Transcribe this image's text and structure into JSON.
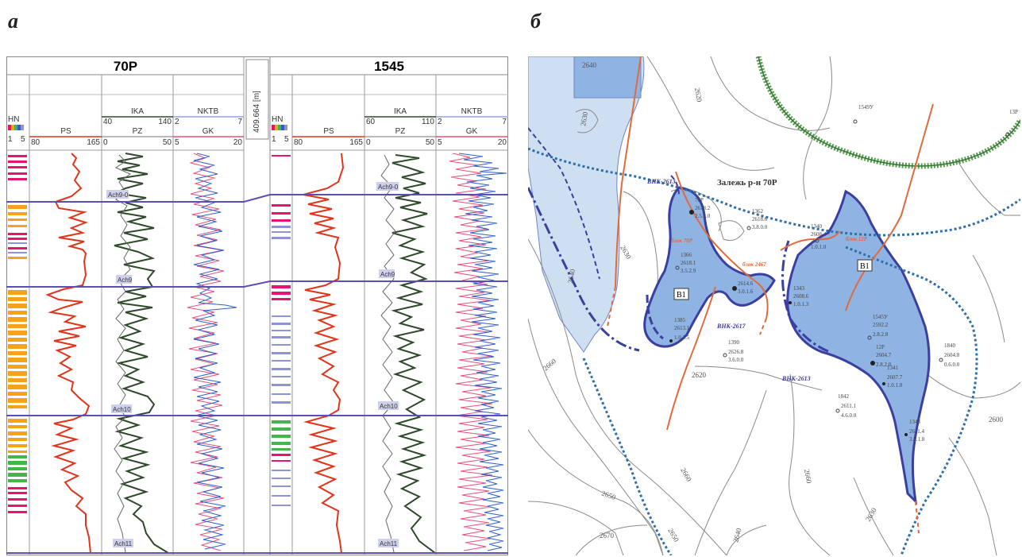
{
  "panel_a_label": "а",
  "panel_b_label": "б",
  "logs": {
    "distance_label": "409.664 [m]",
    "wells": [
      {
        "name": "70P",
        "hn_label": "HN",
        "hn_scale_min": "1",
        "hn_scale_max": "5",
        "ps_label": "PS",
        "ps_min": "80",
        "ps_max": "165",
        "ika_label": "IKA",
        "ika_min": "40",
        "ika_max": "140",
        "pz_label": "PZ",
        "pz_min": "0",
        "pz_max": "50",
        "nktb_label": "NKTB",
        "nktb_min": "2",
        "nktb_max": "7",
        "gk_label": "GK",
        "gk_min": "5",
        "gk_max": "20"
      },
      {
        "name": "1545",
        "hn_label": "HN",
        "hn_scale_min": "1",
        "hn_scale_max": "5",
        "ps_label": "PS",
        "ps_min": "80",
        "ps_max": "165",
        "ika_label": "IKA",
        "ika_min": "60",
        "ika_max": "110",
        "pz_label": "PZ",
        "pz_min": "0",
        "pz_max": "50",
        "nktb_label": "NKTB",
        "nktb_min": "2",
        "nktb_max": "7",
        "gk_label": "GK",
        "gk_min": "5",
        "gk_max": "20"
      }
    ],
    "markers": [
      "Ach9-0",
      "Ach9",
      "Ach10",
      "Ach11"
    ]
  },
  "map": {
    "deposit_title": "Залежь р-н 70Р",
    "contacts": [
      "ВНК-2613",
      "ВНК-2617",
      "ВНК-2613"
    ],
    "blocks": [
      "блок 70Р",
      "блок 2467",
      "блок 12Р"
    ],
    "zone_label": "В1",
    "contours": [
      "2640",
      "2620",
      "2630",
      "2640",
      "2650",
      "2660",
      "2670",
      "2660",
      "2630",
      "2620",
      "2630",
      "2660",
      "2650",
      "2640",
      "2600"
    ],
    "wells": [
      {
        "id": "70P",
        "top": "2618.2",
        "bottom": "2.5.3.0"
      },
      {
        "id": "1362",
        "top": "2618.6",
        "bottom": "3.8.0.0"
      },
      {
        "id": "1366",
        "top": "2618.1",
        "bottom": "3.5.2.9"
      },
      {
        "id": "2467",
        "top": "2614.6",
        "bottom": "3.0.1.6"
      },
      {
        "id": "1340",
        "top": "2608.4",
        "bottom": "1.0.1.0"
      },
      {
        "id": "1343",
        "top": "2608.6",
        "bottom": "1.0.1.3"
      },
      {
        "id": "1385",
        "top": "2613.1",
        "bottom": "1.0.1.5"
      },
      {
        "id": "1390",
        "top": "2626.8",
        "bottom": "3.6.0.0"
      },
      {
        "id": "1545У",
        "top": "2592.2",
        "bottom": "2.8.2.8"
      },
      {
        "id": "12P",
        "top": "2604.7",
        "bottom": "2.8.2.0"
      },
      {
        "id": "1341",
        "top": "2607.7",
        "bottom": "1.0.1.0"
      },
      {
        "id": "1840",
        "top": "2604.8",
        "bottom": "0.6.0.0"
      },
      {
        "id": "1842",
        "top": "2611.1",
        "bottom": "4.6.0.0"
      },
      {
        "id": "1343",
        "top": "2611.4",
        "bottom": "3.6.1.8"
      }
    ],
    "outside_wells": [
      "1549У",
      "13P"
    ]
  },
  "colors": {
    "ps_curve": "#e0341c",
    "resistivity_curve": "#2e4a2a",
    "gk_curve": "#e8507a",
    "nktb_curve": "#2f5fc8",
    "marker_line": "#5a4fb8",
    "deposit_fill": "#8fb4e3",
    "deposit_border": "#3b3fa0",
    "fault_line": "#e06a3c",
    "hn_orange": "#f7a21b",
    "hn_magenta": "#e8136f",
    "hn_green": "#43b54a",
    "hn_blue": "#8c93d8"
  }
}
